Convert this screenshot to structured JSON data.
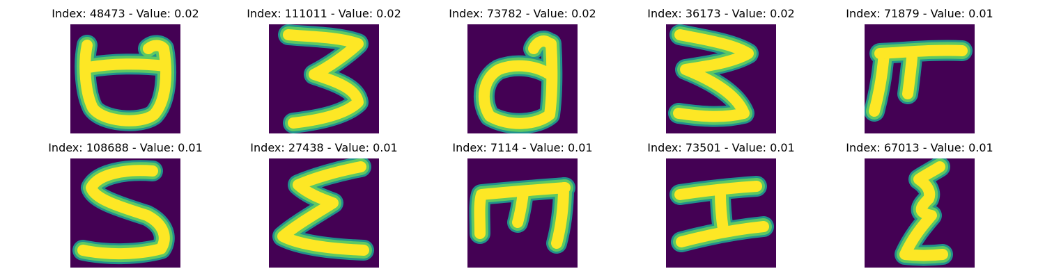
{
  "colors": {
    "background": "#440154",
    "stroke_mid": "#21918c",
    "stroke_outer": "#5ec962",
    "stroke_core": "#fde725"
  },
  "panels": [
    {
      "title": "Index: 48473 - Value: 0.02",
      "glyph": "cup-shape"
    },
    {
      "title": "Index: 111011 - Value: 0.02",
      "glyph": "three-shape"
    },
    {
      "title": "Index: 73782 - Value: 0.02",
      "glyph": "loop-tail-shape"
    },
    {
      "title": "Index: 36173 - Value: 0.02",
      "glyph": "three-shape-2"
    },
    {
      "title": "Index: 71879 - Value: 0.01",
      "glyph": "pi-shape"
    },
    {
      "title": "Index: 108688 - Value: 0.01",
      "glyph": "s-cup-shape"
    },
    {
      "title": "Index: 27438 - Value: 0.01",
      "glyph": "sigma-shape"
    },
    {
      "title": "Index: 7114 - Value: 0.01",
      "glyph": "m-shape"
    },
    {
      "title": "Index: 73501 - Value: 0.01",
      "glyph": "i-beam-shape"
    },
    {
      "title": "Index: 67013 - Value: 0.01",
      "glyph": "zigzag-shape"
    }
  ]
}
